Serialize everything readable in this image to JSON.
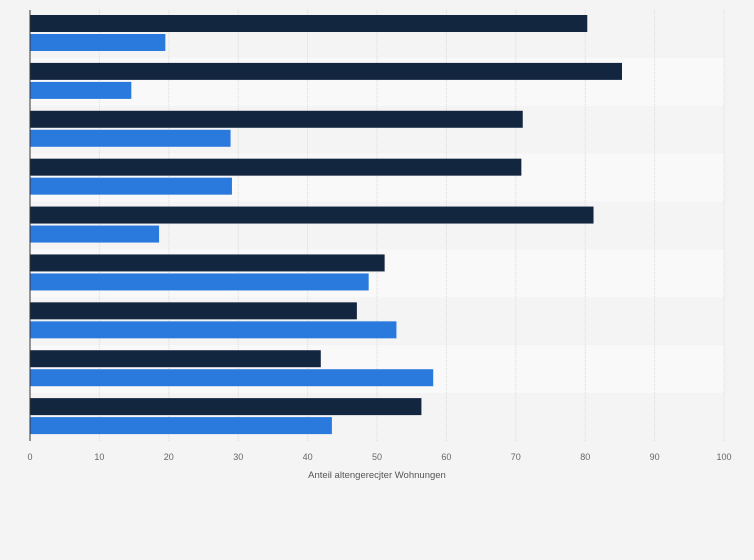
{
  "chart_data": {
    "type": "bar",
    "orientation": "horizontal",
    "xlabel": "Anteil altengerecjter Wohnungen",
    "xlim": [
      0,
      100
    ],
    "ticks": [
      0,
      10,
      20,
      30,
      40,
      50,
      60,
      70,
      80,
      90,
      100
    ],
    "grid": true,
    "legend": "none",
    "categories": [
      "",
      "",
      "",
      "",
      "",
      "",
      "",
      "",
      ""
    ],
    "series": [
      {
        "color": "#13263f",
        "values": [
          80.3,
          85.3,
          71.0,
          70.8,
          81.2,
          51.1,
          47.1,
          41.9,
          56.4
        ]
      },
      {
        "color": "#2a79dc",
        "values": [
          19.5,
          14.6,
          28.9,
          29.1,
          18.6,
          48.8,
          52.8,
          58.1,
          43.5
        ]
      }
    ]
  }
}
